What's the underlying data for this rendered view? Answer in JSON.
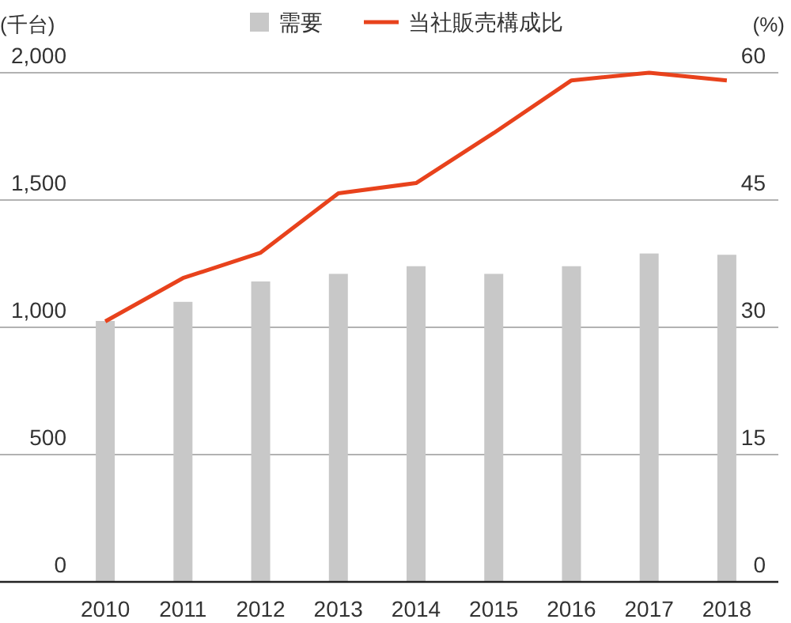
{
  "chart_data": {
    "type": "bar",
    "ylabel": "(千台)",
    "y2label": "(%)",
    "categories": [
      "2010",
      "2011",
      "2012",
      "2013",
      "2014",
      "2015",
      "2016",
      "2017",
      "2018"
    ],
    "series": [
      {
        "name": "需要",
        "color": "#c8c8c8",
        "values": [
          1025,
          1100,
          1180,
          1210,
          1240,
          1210,
          1240,
          1290,
          1285
        ]
      },
      {
        "name": "当社販売構成比",
        "type": "line",
        "axis": "y2",
        "color": "#e8421c",
        "values": [
          30.7,
          35.8,
          38.8,
          45.8,
          47.0,
          52.9,
          59.1,
          60.0,
          59.1
        ]
      }
    ],
    "ylim": [
      0,
      2000
    ],
    "yticks": [
      0,
      {
        "value": 500,
        "label": "500"
      },
      {
        "value": 1000,
        "label": "1,000"
      },
      {
        "value": 1500,
        "label": "1,500"
      },
      {
        "value": 2000,
        "label": "2,000"
      }
    ],
    "y2lim": [
      0,
      60
    ],
    "y2ticks": [
      0,
      15,
      30,
      45,
      60
    ],
    "grid": "y",
    "legend": "top",
    "marker": "none",
    "line_style": "solid"
  }
}
